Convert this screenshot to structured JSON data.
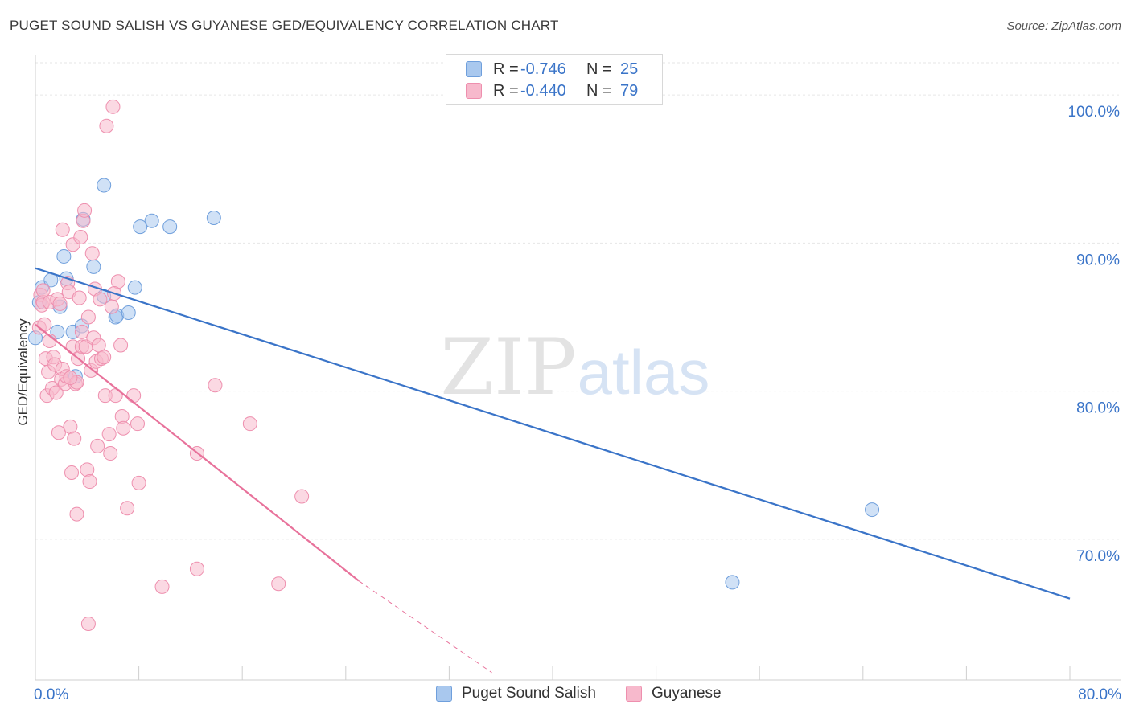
{
  "title": "PUGET SOUND SALISH VS GUYANESE GED/EQUIVALENCY CORRELATION CHART",
  "source": "Source: ZipAtlas.com",
  "watermark": {
    "zip": "ZIP",
    "atlas": "atlas"
  },
  "legend_top": [
    {
      "r_label": "R =",
      "r_value": "-0.746",
      "n_label": "N =",
      "n_value": "25",
      "color": "#a9c8ee",
      "stroke": "#6f9fdc"
    },
    {
      "r_label": "R =",
      "r_value": "-0.440",
      "n_label": "N =",
      "n_value": "79",
      "color": "#f7b9cc",
      "stroke": "#ee8fae"
    }
  ],
  "legend_bottom": [
    "Puget Sound Salish",
    "Guyanese"
  ],
  "chart_data": {
    "type": "scatter",
    "title": "PUGET SOUND SALISH VS GUYANESE GED/EQUIVALENCY CORRELATION CHART",
    "xlabel": "",
    "ylabel": "GED/Equivalency",
    "xlim": [
      0,
      80
    ],
    "ylim": [
      60.5,
      102.5
    ],
    "x_tick_labels": [
      "0.0%",
      "80.0%"
    ],
    "y_ticks": [
      70,
      80,
      90,
      100
    ],
    "y_tick_labels": [
      "70.0%",
      "80.0%",
      "90.0%",
      "100.0%"
    ],
    "grid": true,
    "series": [
      {
        "name": "Puget Sound Salish",
        "color": "#6f9fdc",
        "fill": "#a9c8ee",
        "line_color": "#3a74c8",
        "trend": {
          "x": [
            0,
            80
          ],
          "y": [
            88.3,
            66.0
          ]
        },
        "points": [
          [
            0.0,
            83.6
          ],
          [
            0.5,
            87.0
          ],
          [
            1.2,
            87.5
          ],
          [
            1.7,
            84.0
          ],
          [
            1.9,
            85.7
          ],
          [
            2.2,
            89.1
          ],
          [
            2.4,
            87.6
          ],
          [
            2.9,
            84.0
          ],
          [
            3.1,
            81.0
          ],
          [
            3.6,
            84.4
          ],
          [
            3.7,
            91.6
          ],
          [
            4.5,
            88.4
          ],
          [
            5.3,
            86.4
          ],
          [
            5.3,
            93.9
          ],
          [
            6.2,
            85.0
          ],
          [
            6.3,
            85.1
          ],
          [
            7.2,
            85.3
          ],
          [
            7.7,
            87.0
          ],
          [
            8.1,
            91.1
          ],
          [
            9.0,
            91.5
          ],
          [
            10.4,
            91.1
          ],
          [
            13.8,
            91.7
          ],
          [
            53.9,
            67.1
          ],
          [
            64.7,
            72.0
          ],
          [
            0.3,
            86.0
          ]
        ]
      },
      {
        "name": "Guyanese",
        "color": "#ee8fae",
        "fill": "#f7b9cc",
        "line_color": "#e8729b",
        "trend": {
          "x": [
            0,
            25
          ],
          "y": [
            84.5,
            67.2
          ]
        },
        "trend_ext": {
          "x": [
            25,
            35.3
          ],
          "y": [
            67.2,
            61.0
          ]
        },
        "points": [
          [
            0.3,
            84.3
          ],
          [
            0.4,
            86.5
          ],
          [
            0.5,
            85.8
          ],
          [
            0.6,
            86.0
          ],
          [
            0.7,
            84.5
          ],
          [
            0.8,
            82.2
          ],
          [
            0.9,
            79.7
          ],
          [
            1.0,
            81.3
          ],
          [
            1.1,
            86.0
          ],
          [
            1.3,
            80.2
          ],
          [
            1.4,
            82.3
          ],
          [
            1.5,
            81.8
          ],
          [
            1.6,
            79.9
          ],
          [
            1.7,
            86.2
          ],
          [
            1.8,
            77.2
          ],
          [
            2.0,
            80.8
          ],
          [
            2.1,
            81.5
          ],
          [
            2.1,
            90.9
          ],
          [
            2.3,
            80.5
          ],
          [
            2.5,
            87.3
          ],
          [
            2.6,
            86.7
          ],
          [
            2.7,
            77.6
          ],
          [
            2.8,
            74.5
          ],
          [
            2.9,
            83.0
          ],
          [
            2.9,
            89.9
          ],
          [
            3.0,
            76.8
          ],
          [
            3.1,
            80.5
          ],
          [
            3.2,
            71.7
          ],
          [
            3.3,
            82.2
          ],
          [
            3.4,
            86.3
          ],
          [
            3.5,
            90.4
          ],
          [
            3.6,
            83.0
          ],
          [
            3.6,
            84.0
          ],
          [
            3.7,
            91.5
          ],
          [
            3.8,
            92.2
          ],
          [
            3.9,
            83.0
          ],
          [
            4.0,
            74.7
          ],
          [
            4.1,
            85.0
          ],
          [
            4.2,
            73.9
          ],
          [
            4.3,
            81.4
          ],
          [
            4.4,
            89.3
          ],
          [
            4.5,
            83.6
          ],
          [
            4.6,
            86.9
          ],
          [
            4.7,
            82.0
          ],
          [
            4.8,
            76.3
          ],
          [
            4.9,
            83.1
          ],
          [
            5.1,
            82.2
          ],
          [
            5.3,
            82.3
          ],
          [
            5.4,
            79.7
          ],
          [
            5.5,
            97.9
          ],
          [
            5.7,
            77.1
          ],
          [
            5.8,
            75.8
          ],
          [
            5.9,
            85.7
          ],
          [
            6.0,
            99.2
          ],
          [
            6.2,
            79.7
          ],
          [
            6.4,
            87.4
          ],
          [
            6.6,
            83.1
          ],
          [
            6.7,
            78.3
          ],
          [
            6.8,
            77.5
          ],
          [
            7.1,
            72.1
          ],
          [
            7.6,
            79.7
          ],
          [
            7.9,
            77.8
          ],
          [
            8.0,
            73.8
          ],
          [
            9.8,
            66.8
          ],
          [
            12.5,
            75.8
          ],
          [
            12.5,
            68.0
          ],
          [
            13.9,
            80.4
          ],
          [
            16.6,
            77.8
          ],
          [
            18.8,
            67.0
          ],
          [
            20.6,
            72.9
          ],
          [
            4.1,
            64.3
          ],
          [
            6.1,
            86.6
          ],
          [
            1.9,
            85.9
          ],
          [
            2.4,
            81.0
          ],
          [
            3.2,
            80.6
          ],
          [
            0.6,
            86.8
          ],
          [
            1.1,
            83.4
          ],
          [
            5.0,
            86.2
          ],
          [
            2.7,
            80.9
          ]
        ]
      }
    ]
  }
}
